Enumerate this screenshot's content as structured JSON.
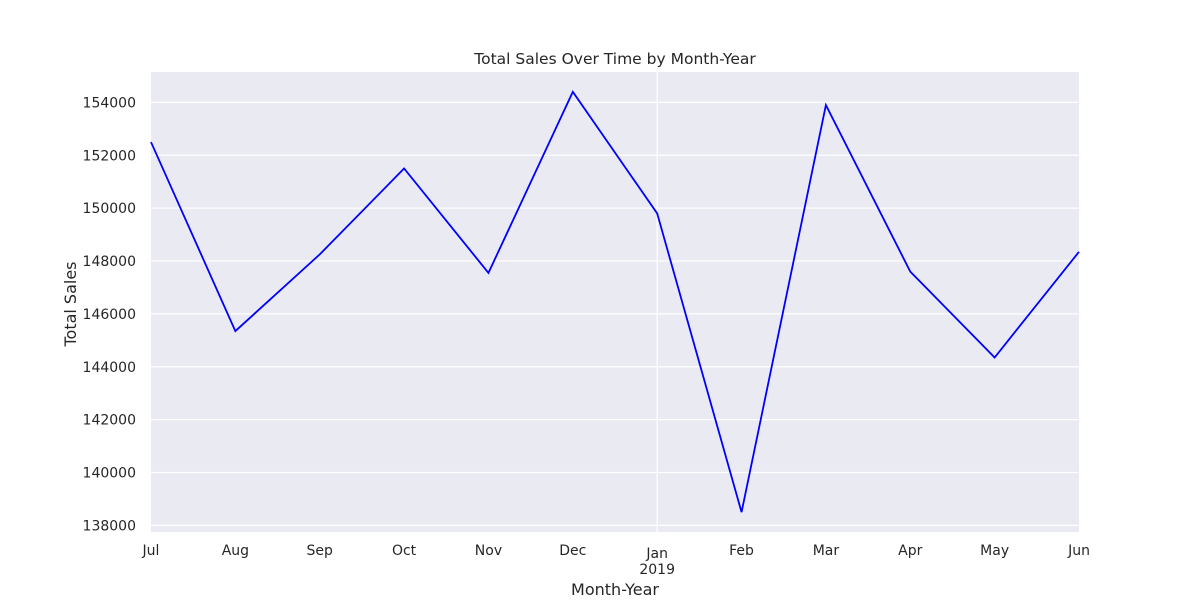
{
  "chart_data": {
    "type": "line",
    "title": "Total Sales Over Time by Month-Year",
    "xlabel": "Month-Year",
    "ylabel": "Total Sales",
    "x": [
      "Jul",
      "Aug",
      "Sep",
      "Oct",
      "Nov",
      "Dec",
      "Jan",
      "Feb",
      "Mar",
      "Apr",
      "May",
      "Jun"
    ],
    "x_year_label": {
      "index": 6,
      "text": "2019"
    },
    "series": [
      {
        "values": [
          152500,
          145350,
          148250,
          151500,
          147550,
          154400,
          149800,
          138500,
          153900,
          147600,
          144350,
          148350
        ],
        "color": "#0000ff"
      }
    ],
    "ylim": [
      137750,
      155150
    ],
    "yticks": [
      138000,
      140000,
      142000,
      144000,
      146000,
      148000,
      150000,
      152000,
      154000
    ],
    "grid": true,
    "colors": {
      "plot_background": "#eaeaf2",
      "grid": "#ffffff",
      "line": "#0000ff"
    }
  }
}
